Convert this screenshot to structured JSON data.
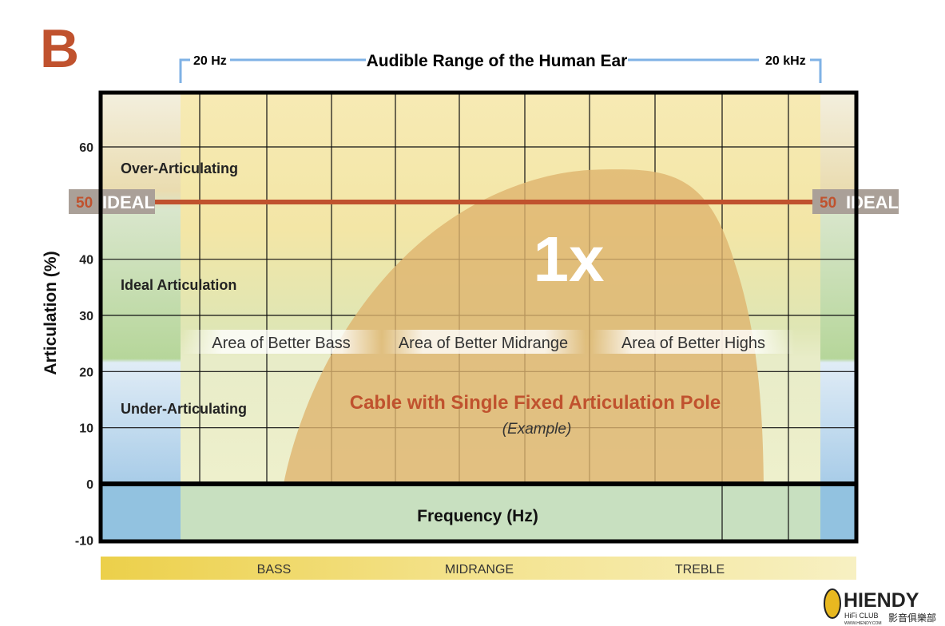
{
  "panel_letter": "B",
  "chart_data": {
    "type": "area",
    "title": "Audible Range of the Human Ear",
    "range_start_label": "20 Hz",
    "range_end_label": "20 kHz",
    "xlabel": "Frequency (Hz)",
    "ylabel": "Articulation (%)",
    "ylim": [
      -10,
      70
    ],
    "yticks": [
      "60",
      "40",
      "30",
      "20",
      "10",
      "0",
      "-10"
    ],
    "grid": true,
    "ideal_line": {
      "value": 50,
      "value_label": "50",
      "label": "IDEAL",
      "color": "#c0522e"
    },
    "zones": [
      {
        "label": "Over-Articulating",
        "range": [
          50,
          70
        ]
      },
      {
        "label": "Ideal Articulation",
        "range": [
          20,
          50
        ]
      },
      {
        "label": "Under-Articulating",
        "range": [
          0,
          20
        ]
      }
    ],
    "area_labels": [
      "Area of Better Bass",
      "Area of Better Midrange",
      "Area of Better Highs"
    ],
    "series": [
      {
        "name": "Cable with Single Fixed Articulation Pole",
        "peak_label": "1x",
        "peak_value": 56,
        "color": "#deb46e"
      }
    ],
    "series_note": "(Example)",
    "bands": [
      "BASS",
      "MIDRANGE",
      "TREBLE"
    ]
  },
  "logo": {
    "name": "HIENDY",
    "sub": "HiFi CLUB",
    "url_text": "WWW.HIENDY.COM",
    "cjk": "影音俱樂部"
  }
}
